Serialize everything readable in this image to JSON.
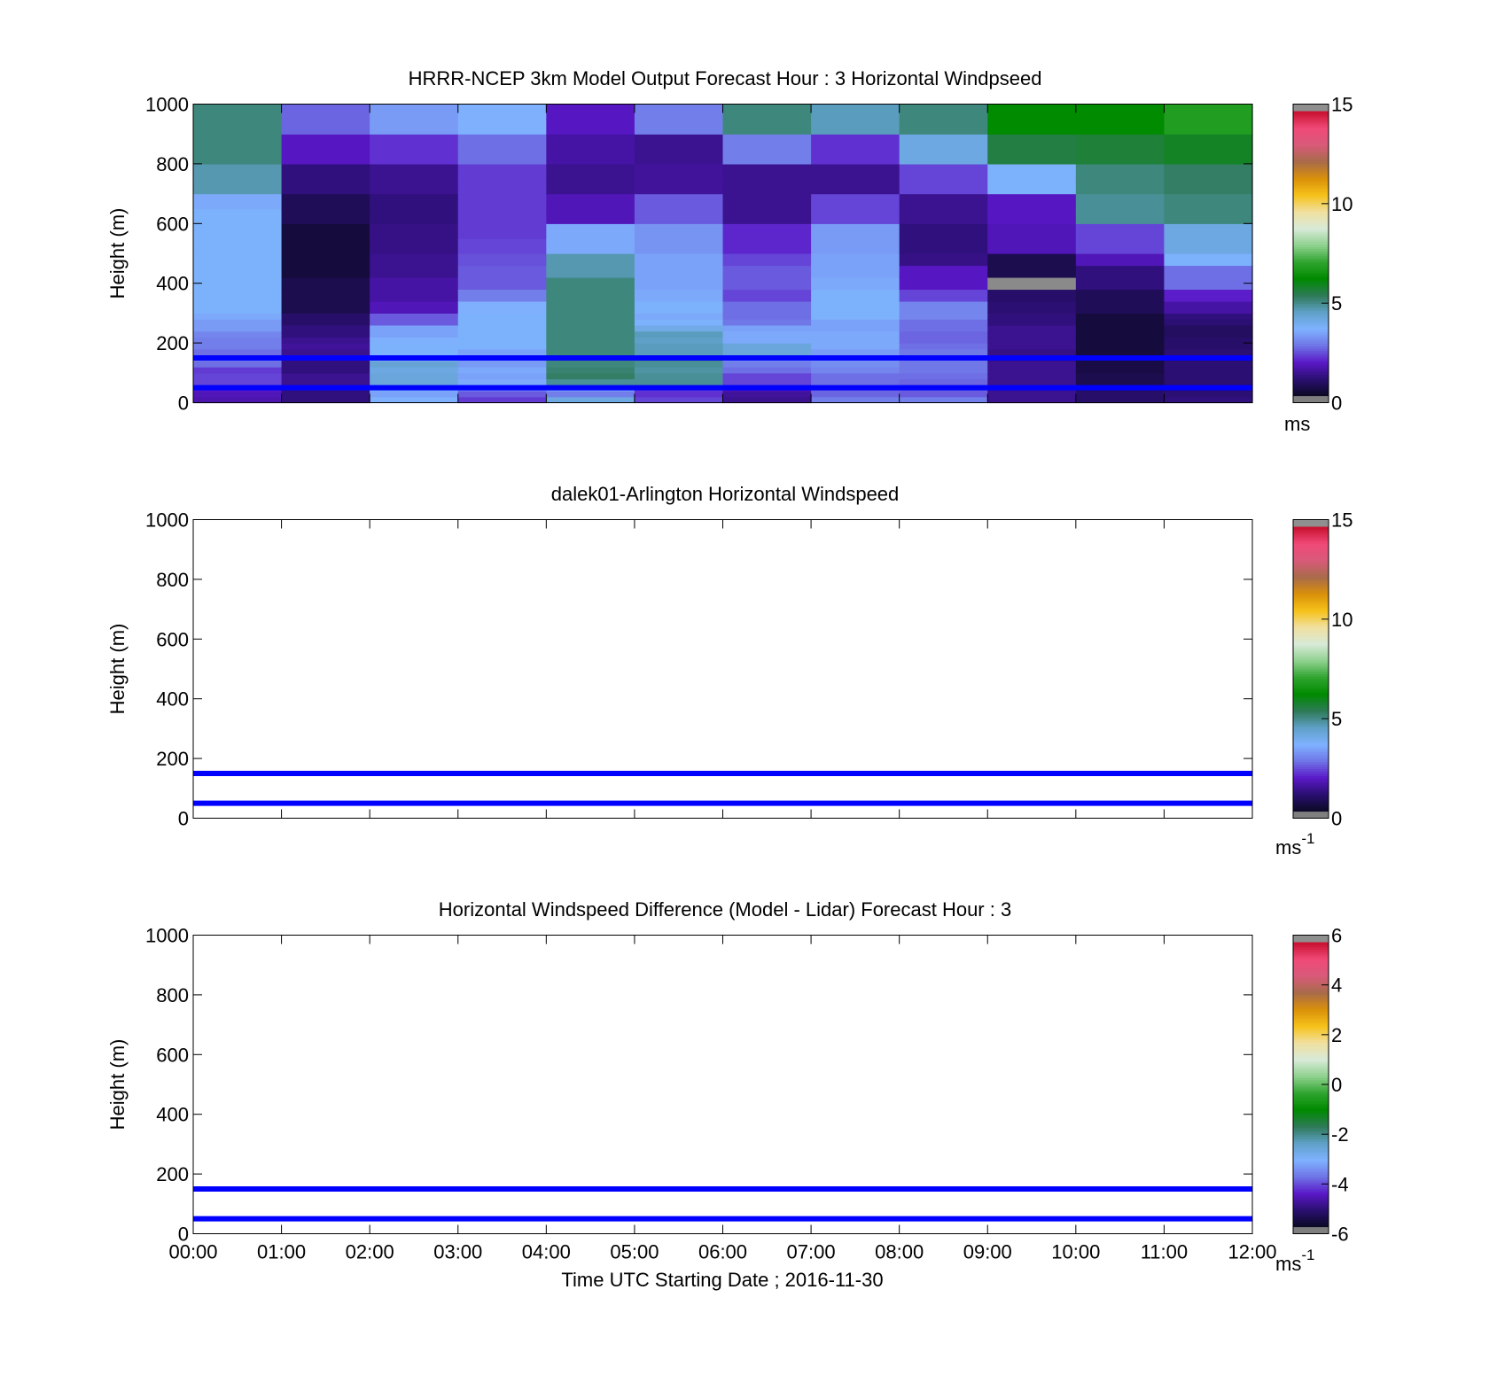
{
  "figure": {
    "xlabel": "Time UTC  Starting Date ; 2016-11-30"
  },
  "chart_data": [
    {
      "type": "heatmap",
      "title": "HRRR-NCEP 3km Model Output   Forecast Hour : 3 Horizontal Windpseed",
      "xlabel": "",
      "ylabel": "Height (m)",
      "x_ticks": [
        "00:00",
        "01:00",
        "02:00",
        "03:00",
        "04:00",
        "05:00",
        "06:00",
        "07:00",
        "08:00",
        "09:00",
        "10:00",
        "11:00",
        "12:00"
      ],
      "x_tick_labels_shown": false,
      "ylim": [
        0,
        1000
      ],
      "y_ticks": [
        0,
        200,
        400,
        600,
        800,
        1000
      ],
      "colorbar": {
        "min": 0,
        "max": 15,
        "ticks": [
          0,
          5,
          10,
          15
        ],
        "unit": "ms"
      },
      "reference_heights_m": [
        50,
        150
      ],
      "heights_m": [
        20,
        40,
        60,
        80,
        100,
        120,
        140,
        160,
        180,
        200,
        220,
        240,
        260,
        280,
        300,
        340,
        380,
        420,
        460,
        500,
        550,
        600,
        650,
        700,
        750,
        800,
        850,
        900,
        950,
        1000
      ],
      "values_ms": [
        [
          1.5,
          1.6,
          1.8,
          2.2,
          2.2,
          2.1,
          2.6,
          2.7,
          2.6,
          2.8,
          2.8,
          2.9,
          3.2,
          3.2,
          3.4,
          3.6,
          3.6,
          3.6,
          3.6,
          3.6,
          3.6,
          3.6,
          3.6,
          3.4,
          4.6,
          4.6,
          5.0,
          5.0,
          5.0,
          5.0
        ],
        [
          1.0,
          1.0,
          1.0,
          1.2,
          1.2,
          1.0,
          1.0,
          1.1,
          1.2,
          1.3,
          1.2,
          1.0,
          1.0,
          0.8,
          0.8,
          0.5,
          0.5,
          0.5,
          0.3,
          0.3,
          0.3,
          0.3,
          0.6,
          0.6,
          1.0,
          1.0,
          1.7,
          1.7,
          2.5,
          2.5
        ],
        [
          3.5,
          3.3,
          3.6,
          4.1,
          4.1,
          4.0,
          4.2,
          3.8,
          3.6,
          3.6,
          3.5,
          3.3,
          3.3,
          2.4,
          2.4,
          1.6,
          1.4,
          1.4,
          1.2,
          1.2,
          1.1,
          1.1,
          1.0,
          1.0,
          1.2,
          1.2,
          2.0,
          2.0,
          3.2,
          3.2
        ],
        [
          2.1,
          2.4,
          3.0,
          3.4,
          3.3,
          3.4,
          3.2,
          3.2,
          3.3,
          3.6,
          3.6,
          3.6,
          3.6,
          3.6,
          3.6,
          3.5,
          2.8,
          2.4,
          2.4,
          2.3,
          2.2,
          2.1,
          2.1,
          2.1,
          2.1,
          2.1,
          2.6,
          2.6,
          3.5,
          3.5
        ],
        [
          4.0,
          2.8,
          3.4,
          4.8,
          5.2,
          5.1,
          5.0,
          5.0,
          5.0,
          5.0,
          5.0,
          5.0,
          5.0,
          5.0,
          5.0,
          5.0,
          5.0,
          5.0,
          4.6,
          4.6,
          3.4,
          3.4,
          1.6,
          1.6,
          1.2,
          1.2,
          1.4,
          1.4,
          1.7,
          1.7
        ],
        [
          2.2,
          2.0,
          2.1,
          4.8,
          4.8,
          4.7,
          4.8,
          4.9,
          4.5,
          4.5,
          4.4,
          4.5,
          3.9,
          3.6,
          3.4,
          3.6,
          3.4,
          3.3,
          3.3,
          3.3,
          3.1,
          3.1,
          2.4,
          2.4,
          1.3,
          1.3,
          1.2,
          1.2,
          2.8,
          2.8
        ],
        [
          1.2,
          1.3,
          1.6,
          2.2,
          2.2,
          2.6,
          2.8,
          3.0,
          4.1,
          4.1,
          3.4,
          3.4,
          3.3,
          2.7,
          2.6,
          2.6,
          2.2,
          2.4,
          2.4,
          2.2,
          1.9,
          1.9,
          1.2,
          1.2,
          1.2,
          1.2,
          2.8,
          2.8,
          5.0,
          5.0
        ],
        [
          2.8,
          2.5,
          2.5,
          2.6,
          2.6,
          2.9,
          3.0,
          3.1,
          3.2,
          3.4,
          3.4,
          3.4,
          3.3,
          3.3,
          3.6,
          3.6,
          3.6,
          3.4,
          3.3,
          3.3,
          3.2,
          3.2,
          2.2,
          2.2,
          1.2,
          1.2,
          2.0,
          2.0,
          4.5,
          4.5
        ],
        [
          2.8,
          2.4,
          2.5,
          2.5,
          2.6,
          2.7,
          2.7,
          2.7,
          2.7,
          2.6,
          2.5,
          2.5,
          2.6,
          2.6,
          2.9,
          2.9,
          2.2,
          1.7,
          1.7,
          1.1,
          1.0,
          1.0,
          1.2,
          1.2,
          2.2,
          2.2,
          4.0,
          4.0,
          5.0,
          5.0
        ],
        [
          1.2,
          1.2,
          1.2,
          1.2,
          1.2,
          1.2,
          1.2,
          1.1,
          1.1,
          1.2,
          1.2,
          1.2,
          1.2,
          1.0,
          1.0,
          0.9,
          0.8,
          0.0,
          0.5,
          0.5,
          1.6,
          1.6,
          1.7,
          1.7,
          3.6,
          3.6,
          5.5,
          5.5,
          6.2,
          6.2
        ],
        [
          0.8,
          0.8,
          0.7,
          0.5,
          0.5,
          0.4,
          0.4,
          0.4,
          0.3,
          0.3,
          0.3,
          0.3,
          0.3,
          0.3,
          0.3,
          0.6,
          0.6,
          1.0,
          1.0,
          1.6,
          2.2,
          2.2,
          4.8,
          4.8,
          5.0,
          5.0,
          5.6,
          5.6,
          6.2,
          6.2
        ],
        [
          1.0,
          0.9,
          0.9,
          0.9,
          0.9,
          0.9,
          0.9,
          0.9,
          0.9,
          0.8,
          0.8,
          0.7,
          0.7,
          0.9,
          1.0,
          1.4,
          1.8,
          2.6,
          2.6,
          3.6,
          4.0,
          4.0,
          5.0,
          5.0,
          5.2,
          5.2,
          5.8,
          5.8,
          6.8,
          6.8
        ]
      ]
    },
    {
      "type": "heatmap",
      "title": "dalek01-Arlington  Horizontal Windspeed",
      "xlabel": "",
      "ylabel": "Height (m)",
      "x_ticks": [
        "00:00",
        "01:00",
        "02:00",
        "03:00",
        "04:00",
        "05:00",
        "06:00",
        "07:00",
        "08:00",
        "09:00",
        "10:00",
        "11:00",
        "12:00"
      ],
      "x_tick_labels_shown": false,
      "ylim": [
        0,
        1000
      ],
      "y_ticks": [
        0,
        200,
        400,
        600,
        800,
        1000
      ],
      "colorbar": {
        "min": 0,
        "max": 15,
        "ticks": [
          0,
          5,
          10,
          15
        ],
        "unit": "ms",
        "unit_superscript": "-1"
      },
      "reference_heights_m": [
        50,
        150
      ],
      "values_ms": []
    },
    {
      "type": "heatmap",
      "title": "Horizontal Windspeed Difference (Model - Lidar) Forecast Hour : 3",
      "xlabel": "Time UTC  Starting Date ; 2016-11-30",
      "ylabel": "Height (m)",
      "x_ticks": [
        "00:00",
        "01:00",
        "02:00",
        "03:00",
        "04:00",
        "05:00",
        "06:00",
        "07:00",
        "08:00",
        "09:00",
        "10:00",
        "11:00",
        "12:00"
      ],
      "x_tick_labels_shown": true,
      "ylim": [
        0,
        1000
      ],
      "y_ticks": [
        0,
        200,
        400,
        600,
        800,
        1000
      ],
      "colorbar": {
        "min": -6,
        "max": 6,
        "ticks": [
          -6,
          -4,
          -2,
          0,
          2,
          4,
          6
        ],
        "unit": "ms",
        "unit_superscript": "-1"
      },
      "reference_heights_m": [
        50,
        150
      ],
      "values_ms": []
    }
  ],
  "colormap_stops": [
    "#7f7f7f",
    "#0a0a23",
    "#2a0f70",
    "#5a18c8",
    "#6f74e6",
    "#7fb2ff",
    "#5fa0c8",
    "#2e7a58",
    "#008a00",
    "#2fa52f",
    "#8fd08f",
    "#d8ead8",
    "#f0e0a0",
    "#f6c21a",
    "#d9900a",
    "#a86b4a",
    "#d85a7a",
    "#f04a78",
    "#c8102e",
    "#8f8f8f"
  ],
  "reference_line_color": "#0000ff"
}
